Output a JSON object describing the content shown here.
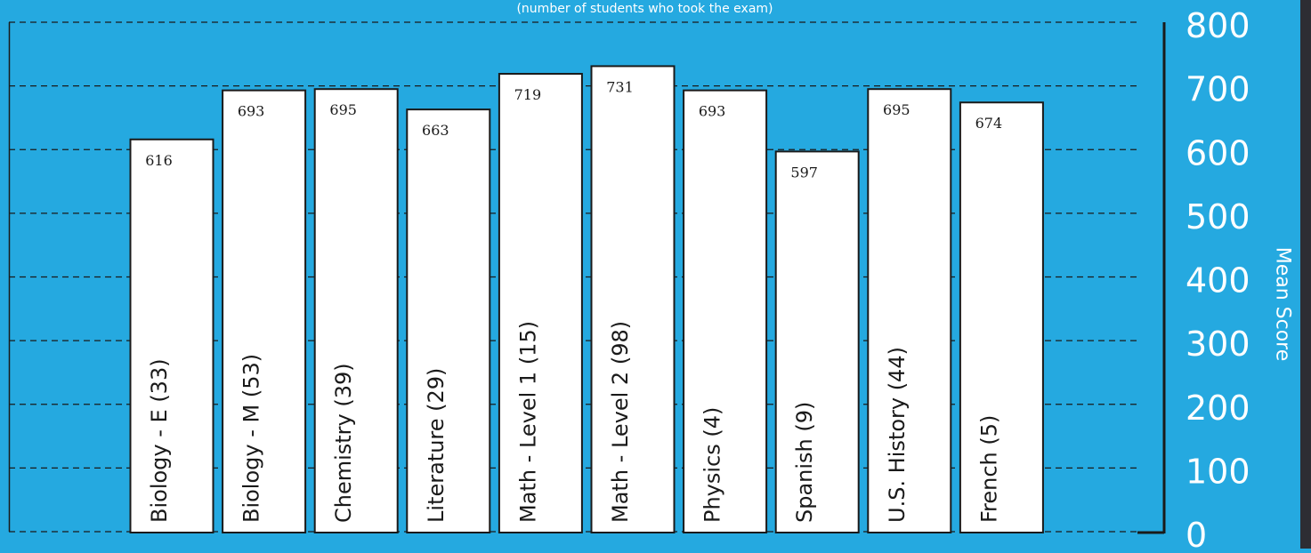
{
  "chart_data": {
    "type": "bar",
    "subtitle": "(number of students who took the exam)",
    "ylabel": "Mean Score",
    "ylim": [
      0,
      800
    ],
    "yticks": [
      0,
      100,
      200,
      300,
      400,
      500,
      600,
      700,
      800
    ],
    "grid": true,
    "categories": [
      "Biology - E (33)",
      "Biology - M (53)",
      "Chemistry (39)",
      "Literature (29)",
      "Math - Level 1 (15)",
      "Math - Level 2 (98)",
      "Physics (4)",
      "Spanish (9)",
      "U.S. History (44)",
      "French (5)"
    ],
    "values": [
      616,
      693,
      695,
      663,
      719,
      731,
      693,
      597,
      695,
      674
    ],
    "bar_color": "#ffffff",
    "background_color": "#25a9e0",
    "text_color": "#ffffff"
  }
}
